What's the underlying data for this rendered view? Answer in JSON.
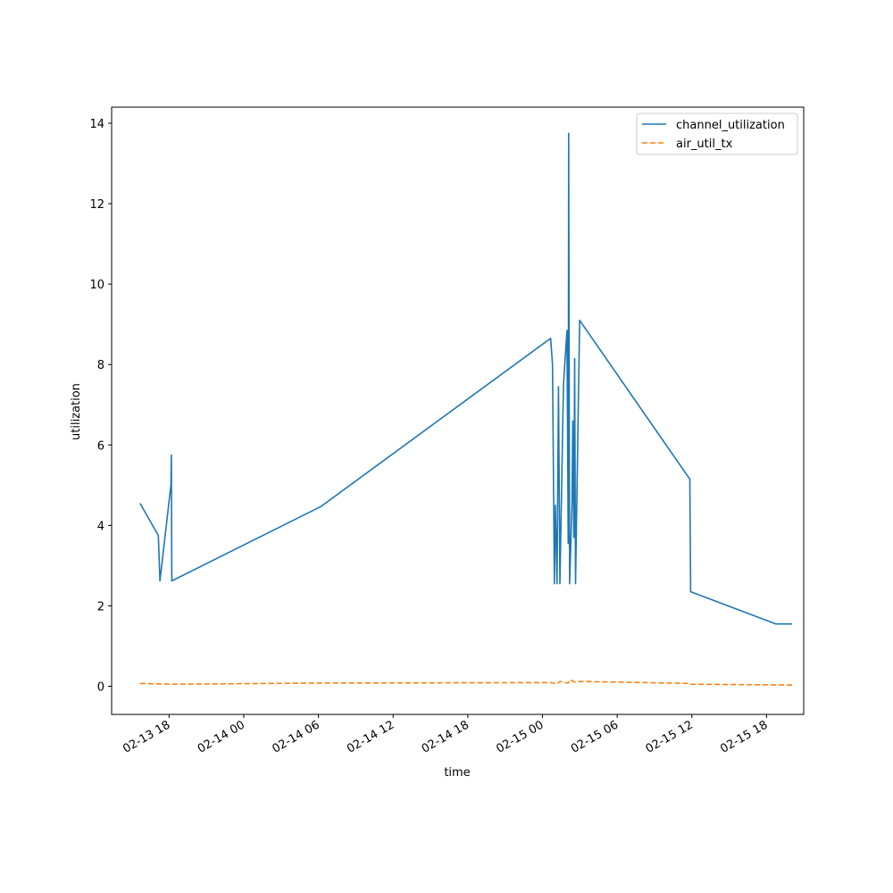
{
  "chart_data": {
    "type": "line",
    "xlabel": "time",
    "ylabel": "utilization",
    "x_ticks": [
      "02-13 18",
      "02-14 00",
      "02-14 06",
      "02-14 12",
      "02-14 18",
      "02-15 00",
      "02-15 06",
      "02-15 12",
      "02-15 18"
    ],
    "y_ticks": [
      "0",
      "2",
      "4",
      "6",
      "8",
      "10",
      "12",
      "14"
    ],
    "xlim": [
      "2024-02-13 13:23",
      "2024-02-15 20:59"
    ],
    "ylim": [
      -0.7,
      14.4
    ],
    "grid": false,
    "legend_position": "top-right",
    "series": [
      {
        "name": "channel_utilization",
        "color": "#1f77b4",
        "style": "solid",
        "points": [
          [
            "2024-02-13 15:40",
            4.55
          ],
          [
            "2024-02-13 17:08",
            3.75
          ],
          [
            "2024-02-13 17:16",
            2.62
          ],
          [
            "2024-02-13 18:09",
            5.0
          ],
          [
            "2024-02-13 18:11",
            5.75
          ],
          [
            "2024-02-13 18:13",
            2.62
          ],
          [
            "2024-02-14 06:12",
            4.47
          ],
          [
            "2024-02-15 00:39",
            8.65
          ],
          [
            "2024-02-15 00:48",
            8.0
          ],
          [
            "2024-02-15 00:57",
            2.55
          ],
          [
            "2024-02-15 01:02",
            4.5
          ],
          [
            "2024-02-15 01:10",
            2.55
          ],
          [
            "2024-02-15 01:17",
            7.45
          ],
          [
            "2024-02-15 01:24",
            2.55
          ],
          [
            "2024-02-15 01:41",
            7.5
          ],
          [
            "2024-02-15 01:58",
            8.85
          ],
          [
            "2024-02-15 02:04",
            3.55
          ],
          [
            "2024-02-15 02:06",
            13.75
          ],
          [
            "2024-02-15 02:11",
            2.55
          ],
          [
            "2024-02-15 02:22",
            4.5
          ],
          [
            "2024-02-15 02:26",
            6.6
          ],
          [
            "2024-02-15 02:31",
            3.7
          ],
          [
            "2024-02-15 02:35",
            8.15
          ],
          [
            "2024-02-15 02:39",
            2.55
          ],
          [
            "2024-02-15 02:59",
            9.1
          ],
          [
            "2024-02-15 11:50",
            5.15
          ],
          [
            "2024-02-15 11:54",
            2.35
          ],
          [
            "2024-02-15 18:45",
            1.55
          ],
          [
            "2024-02-15 20:03",
            1.55
          ]
        ]
      },
      {
        "name": "air_util_tx",
        "color": "#ff7f0e",
        "style": "dashed",
        "points": [
          [
            "2024-02-13 15:40",
            0.07
          ],
          [
            "2024-02-13 17:08",
            0.06
          ],
          [
            "2024-02-13 18:13",
            0.05
          ],
          [
            "2024-02-14 06:12",
            0.08
          ],
          [
            "2024-02-15 00:39",
            0.09
          ],
          [
            "2024-02-15 01:10",
            0.06
          ],
          [
            "2024-02-15 01:24",
            0.12
          ],
          [
            "2024-02-15 02:04",
            0.08
          ],
          [
            "2024-02-15 02:11",
            0.16
          ],
          [
            "2024-02-15 02:39",
            0.1
          ],
          [
            "2024-02-15 02:59",
            0.12
          ],
          [
            "2024-02-15 11:50",
            0.07
          ],
          [
            "2024-02-15 11:54",
            0.05
          ],
          [
            "2024-02-15 20:03",
            0.03
          ]
        ]
      }
    ]
  }
}
